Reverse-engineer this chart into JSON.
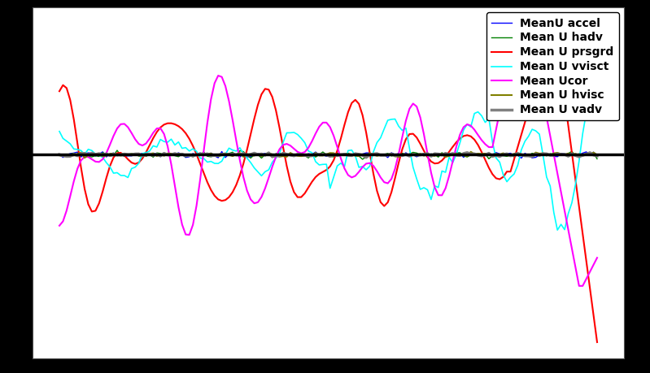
{
  "n_points": 150,
  "legend_labels": [
    "MeanU accel",
    "Mean U hadv",
    "Mean U prsgrd",
    "Mean U vvisct",
    "Mean Ucor",
    "Mean U hvisc",
    "Mean U vadv"
  ],
  "line_colors": [
    "blue",
    "green",
    "red",
    "cyan",
    "magenta",
    "#808000",
    "#808080"
  ],
  "line_widths": [
    1.0,
    1.0,
    1.5,
    1.2,
    1.5,
    1.5,
    2.5
  ],
  "background_color": "white",
  "fig_facecolor": "black",
  "seed": 7
}
